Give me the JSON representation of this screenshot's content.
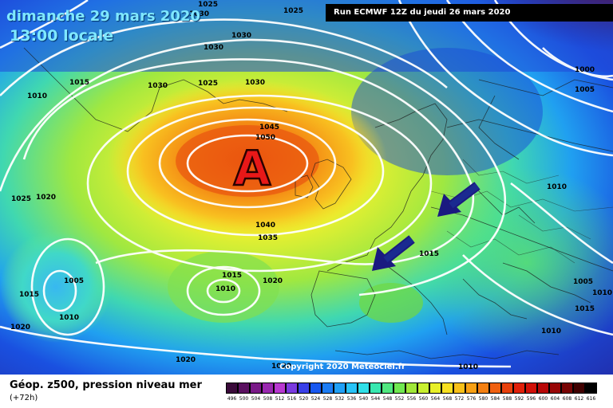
{
  "header": {
    "date": "dimanche 29 mars 2020",
    "time": "13:00 locale",
    "run": "Run ECMWF 12Z du jeudi 26 mars 2020"
  },
  "map": {
    "high_pressure_letter": "A",
    "copyright": "Copyright 2020 Meteociel.fr",
    "isobar_labels": [
      "1025",
      "1025",
      "1030",
      "1030",
      "1030",
      "1025",
      "1030",
      "1015",
      "1010",
      "1030",
      "1045",
      "1050",
      "1040",
      "1035",
      "1025",
      "1020",
      "1015",
      "1005",
      "1015",
      "1010",
      "1020",
      "1015",
      "1020",
      "1010",
      "1020",
      "1020",
      "1000",
      "1005",
      "1010",
      "1005",
      "1010",
      "1010",
      "1010",
      "1015"
    ],
    "arrows": [
      "arrow-northsea",
      "arrow-biscay"
    ]
  },
  "legend": {
    "title": "Géop. z500, pression niveau mer",
    "subtitle": "(+72h)",
    "scale_values": [
      "496",
      "500",
      "504",
      "508",
      "512",
      "516",
      "520",
      "524",
      "528",
      "532",
      "536",
      "540",
      "544",
      "548",
      "552",
      "556",
      "560",
      "564",
      "568",
      "572",
      "576",
      "580",
      "584",
      "588",
      "592",
      "596",
      "600",
      "604",
      "608",
      "612",
      "616"
    ],
    "scale_colors": [
      "#3a0a3a",
      "#5a1060",
      "#7a1a88",
      "#9a28b0",
      "#b838d0",
      "#7a3ae0",
      "#3a40e8",
      "#1858f0",
      "#1c7cf4",
      "#20a0f6",
      "#28c4f8",
      "#30e0e8",
      "#38e8b0",
      "#50e880",
      "#70e850",
      "#a0e838",
      "#c8f030",
      "#e8f028",
      "#f8e020",
      "#f8c018",
      "#f8a014",
      "#f48012",
      "#f06010",
      "#e8400c",
      "#e0200a",
      "#d01008",
      "#b80808",
      "#980606",
      "#780404",
      "#400000",
      "#000000"
    ]
  }
}
